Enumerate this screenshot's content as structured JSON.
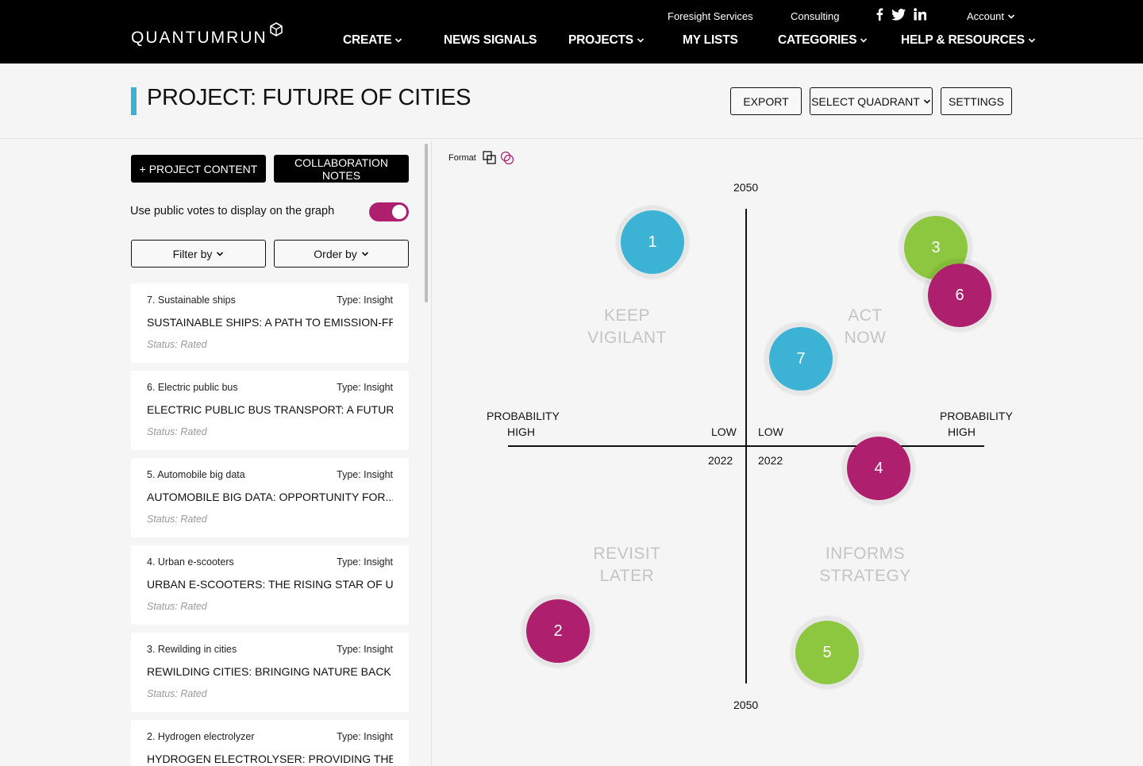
{
  "header": {
    "logo_text": "QUANTUMRUN",
    "util_links": [
      "Foresight Services",
      "Consulting"
    ],
    "account_label": "Account",
    "nav": [
      {
        "label": "CREATE",
        "has_dropdown": true
      },
      {
        "label": "NEWS SIGNALS",
        "has_dropdown": false
      },
      {
        "label": "PROJECTS",
        "has_dropdown": true
      },
      {
        "label": "MY LISTS",
        "has_dropdown": false
      },
      {
        "label": "CATEGORIES",
        "has_dropdown": true
      },
      {
        "label": "HELP & RESOURCES",
        "has_dropdown": true
      }
    ],
    "social_icons": [
      "facebook-icon",
      "twitter-icon",
      "linkedin-icon"
    ]
  },
  "page": {
    "title": "PROJECT: FUTURE OF CITIES",
    "accent_color": "#3bb0d0",
    "buttons": {
      "export": "EXPORT",
      "select_quadrant": "SELECT QUADRANT",
      "settings": "SETTINGS"
    }
  },
  "sidebar": {
    "project_content_label": "+ PROJECT CONTENT",
    "collab_notes_label": "COLLABORATION NOTES",
    "toggle_label": "Use public votes to display on the graph",
    "toggle_on": true,
    "toggle_color": "#ae1f6e",
    "filter_label": "Filter by",
    "order_label": "Order by",
    "cards": [
      {
        "num": "7. Sustainable ships",
        "type": "Type: Insight",
        "title": "SUSTAINABLE SHIPS: A PATH TO EMISSION-FREE...",
        "status": "Status: Rated"
      },
      {
        "num": "6. Electric public bus",
        "type": "Type: Insight",
        "title": "ELECTRIC PUBLIC BUS TRANSPORT: A FUTURE...",
        "status": "Status: Rated"
      },
      {
        "num": "5. Automobile big data",
        "type": "Type: Insight",
        "title": "AUTOMOBILE BIG DATA: OPPORTUNITY FOR...",
        "status": "Status: Rated"
      },
      {
        "num": "4. Urban e-scooters",
        "type": "Type: Insight",
        "title": "URBAN E-SCOOTERS: THE RISING STAR OF URBAN...",
        "status": "Status: Rated"
      },
      {
        "num": "3. Rewilding in cities",
        "type": "Type: Insight",
        "title": "REWILDING CITIES: BRINGING NATURE BACK INTO...",
        "status": "Status: Rated"
      },
      {
        "num": "2. Hydrogen electrolyzer",
        "type": "Type: Insight",
        "title": "HYDROGEN ELECTROLYSER: PROVIDING THE FUEL...",
        "status": "Status: Rated"
      }
    ]
  },
  "graph": {
    "format_label": "Format",
    "top_year": "2050",
    "bottom_year": "2050",
    "left_center_year": "2022",
    "right_center_year": "2022",
    "left_prob": "PROBABILITY",
    "left_high": "HIGH",
    "left_low": "LOW",
    "right_low": "LOW",
    "right_prob": "PROBABILITY",
    "right_high": "HIGH",
    "quadrants": {
      "tl": [
        "KEEP",
        "VIGILANT"
      ],
      "tr": [
        "ACT",
        "NOW"
      ],
      "bl": [
        "REVISIT",
        "LATER"
      ],
      "br": [
        "INFORMS",
        "STRATEGY"
      ]
    },
    "colors": {
      "blue": "#3cb3d5",
      "green": "#8dc63f",
      "magenta": "#ae1f6e"
    },
    "bubbles": [
      {
        "label": "1",
        "color": "#3cb3d5"
      },
      {
        "label": "3",
        "color": "#8dc63f"
      },
      {
        "label": "6",
        "color": "#ae1f6e"
      },
      {
        "label": "7",
        "color": "#3cb3d5"
      },
      {
        "label": "4",
        "color": "#ae1f6e"
      },
      {
        "label": "2",
        "color": "#ae1f6e"
      },
      {
        "label": "5",
        "color": "#8dc63f"
      }
    ]
  }
}
